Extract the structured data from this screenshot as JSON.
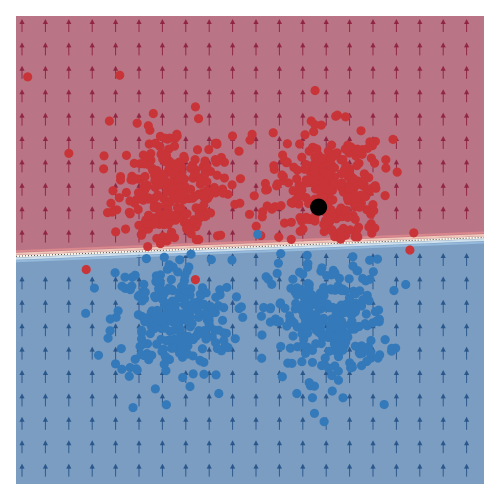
{
  "chart_data": {
    "type": "scatter",
    "title": "",
    "xlabel": "",
    "ylabel": "",
    "xlim": [
      -3,
      3
    ],
    "ylim": [
      -3,
      3
    ],
    "grid": false,
    "legend": "none",
    "colors": {
      "region_top": "#b97585",
      "region_bottom": "#7b9dc1",
      "class_red": "#c83437",
      "class_blue": "#3479b9",
      "arrow_top": "#8b1a3a",
      "arrow_bottom": "#1f4e84",
      "highlight": "#000000"
    },
    "decision_boundary": {
      "x": [
        -3,
        3
      ],
      "y": [
        -0.08,
        0.16
      ]
    },
    "clusters": [
      {
        "name": "",
        "class": "red",
        "center": [
          -1.0,
          0.8
        ],
        "spread": 0.38,
        "count": 260
      },
      {
        "name": "",
        "class": "red",
        "center": [
          1.0,
          0.8
        ],
        "spread": 0.38,
        "count": 260
      },
      {
        "name": "",
        "class": "blue",
        "center": [
          -1.0,
          -0.9
        ],
        "spread": 0.38,
        "count": 260
      },
      {
        "name": "",
        "class": "blue",
        "center": [
          1.0,
          -0.9
        ],
        "spread": 0.38,
        "count": 260
      }
    ],
    "scattered_points": [
      {
        "class": "red",
        "x": -2.85,
        "y": 2.22
      },
      {
        "class": "red",
        "x": -1.67,
        "y": 2.24
      },
      {
        "class": "red",
        "x": 2.05,
        "y": 0.0
      },
      {
        "class": "red",
        "x": 2.1,
        "y": 0.22
      },
      {
        "class": "red",
        "x": -2.1,
        "y": -0.25
      },
      {
        "class": "red",
        "x": -0.7,
        "y": -0.38
      },
      {
        "class": "red",
        "x": -0.13,
        "y": 0.6
      },
      {
        "class": "red",
        "x": 1.6,
        "y": 0.28
      },
      {
        "class": "blue",
        "x": 0.1,
        "y": 0.2
      },
      {
        "class": "blue",
        "x": 0.95,
        "y": -2.2
      },
      {
        "class": "blue",
        "x": 0.6,
        "y": -1.84
      },
      {
        "class": "blue",
        "x": -0.4,
        "y": -1.84
      },
      {
        "class": "blue",
        "x": -1.5,
        "y": -2.02
      },
      {
        "class": "blue",
        "x": 1.72,
        "y": -1.98
      }
    ],
    "highlight_point": {
      "x": 0.88,
      "y": 0.55
    }
  }
}
